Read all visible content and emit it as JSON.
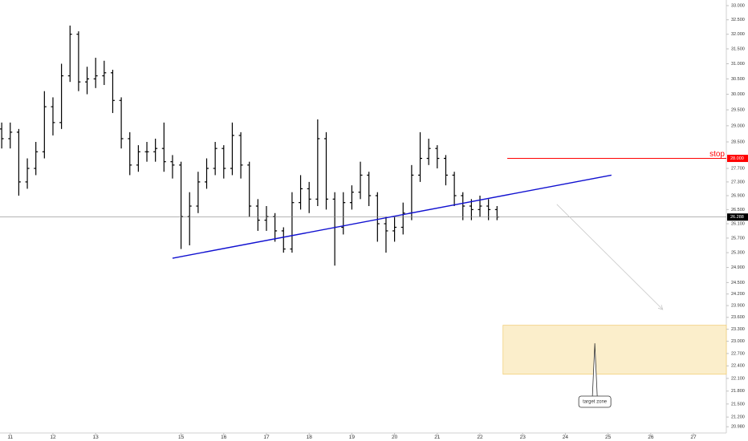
{
  "chart_data": {
    "type": "ohlc",
    "log_scale": true,
    "color": "#000000",
    "xlim": [
      10.76,
      27.77
    ],
    "ylim": [
      20.84,
      33.2
    ],
    "xticks": [
      11,
      12,
      13,
      15,
      16,
      17,
      18,
      19,
      20,
      21,
      22,
      23,
      24,
      25,
      26,
      27
    ],
    "yticks": [
      {
        "value": 33,
        "label": "33.000"
      },
      {
        "value": 32.5,
        "label": "32.500"
      },
      {
        "value": 32,
        "label": "32.000"
      },
      {
        "value": 31.5,
        "label": "31.500"
      },
      {
        "value": 31,
        "label": "31.000"
      },
      {
        "value": 30.5,
        "label": "30.500"
      },
      {
        "value": 30,
        "label": "30.000"
      },
      {
        "value": 29.5,
        "label": "29.500"
      },
      {
        "value": 29,
        "label": "29.000"
      },
      {
        "value": 28.5,
        "label": "28.500"
      },
      {
        "value": 27.7,
        "label": "27.700"
      },
      {
        "value": 27.3,
        "label": "27.300"
      },
      {
        "value": 26.9,
        "label": "26.900"
      },
      {
        "value": 26.5,
        "label": "26.500"
      },
      {
        "value": 26.1,
        "label": "26.100"
      },
      {
        "value": 25.7,
        "label": "25.700"
      },
      {
        "value": 25.3,
        "label": "25.300"
      },
      {
        "value": 24.9,
        "label": "24.900"
      },
      {
        "value": 24.5,
        "label": "24.500"
      },
      {
        "value": 24.2,
        "label": "24.200"
      },
      {
        "value": 23.9,
        "label": "23.900"
      },
      {
        "value": 23.6,
        "label": "23.600"
      },
      {
        "value": 23.3,
        "label": "23.300"
      },
      {
        "value": 23,
        "label": "23.000"
      },
      {
        "value": 22.7,
        "label": "22.700"
      },
      {
        "value": 22.4,
        "label": "22.400"
      },
      {
        "value": 22.1,
        "label": "22.100"
      },
      {
        "value": 21.8,
        "label": "21.800"
      },
      {
        "value": 21.5,
        "label": "21.500"
      },
      {
        "value": 21.2,
        "label": "21.200"
      },
      {
        "value": 20.98,
        "label": "20.980"
      }
    ],
    "x": [
      10.8,
      11.0,
      11.2,
      11.4,
      11.6,
      11.8,
      12.0,
      12.2,
      12.4,
      12.6,
      12.8,
      13.0,
      13.2,
      13.4,
      13.6,
      13.8,
      14.0,
      14.2,
      14.4,
      14.6,
      14.8,
      15.0,
      15.2,
      15.4,
      15.6,
      15.8,
      16.0,
      16.2,
      16.4,
      16.6,
      16.8,
      17.0,
      17.2,
      17.4,
      17.6,
      17.8,
      18.0,
      18.2,
      18.4,
      18.6,
      18.8,
      19.0,
      19.2,
      19.4,
      19.6,
      19.8,
      20.0,
      20.2,
      20.4,
      20.6,
      20.8,
      21.0,
      21.2,
      21.4,
      21.6,
      21.8,
      22.0,
      22.2,
      22.4
    ],
    "open": [
      28.9,
      28.6,
      28.8,
      27.3,
      27.7,
      28.2,
      29.6,
      29.1,
      30.6,
      32.0,
      30.4,
      30.5,
      30.6,
      30.7,
      29.8,
      28.6,
      27.8,
      28.2,
      28.2,
      28.3,
      27.9,
      27.8,
      26.3,
      26.6,
      27.3,
      27.7,
      28.3,
      27.7,
      28.7,
      27.8,
      26.6,
      26.2,
      26.3,
      25.9,
      25.4,
      26.7,
      27.1,
      26.8,
      28.6,
      26.8,
      26.0,
      26.7,
      27.0,
      27.5,
      26.9,
      26.1,
      25.9,
      26.0,
      26.4,
      27.5,
      28.0,
      28.3,
      28.0,
      27.5,
      26.9,
      26.6,
      26.5,
      26.6,
      26.5
    ],
    "high": [
      29.1,
      29.1,
      28.9,
      28.0,
      28.5,
      30.1,
      29.9,
      31.0,
      32.3,
      32.1,
      30.9,
      31.2,
      31.1,
      30.8,
      29.9,
      28.8,
      28.4,
      28.5,
      28.6,
      29.1,
      28.1,
      27.9,
      27.0,
      27.6,
      28.0,
      28.5,
      28.4,
      29.1,
      28.8,
      27.9,
      26.8,
      26.6,
      26.4,
      26.0,
      27.0,
      27.5,
      27.3,
      29.2,
      28.8,
      27.0,
      27.0,
      27.2,
      27.9,
      27.6,
      27.0,
      26.3,
      26.3,
      26.7,
      27.8,
      28.8,
      28.6,
      28.4,
      28.1,
      27.6,
      27.0,
      26.8,
      26.9,
      26.8,
      26.6
    ],
    "low": [
      28.3,
      28.3,
      26.9,
      27.1,
      27.5,
      28.0,
      28.7,
      28.9,
      30.4,
      30.1,
      30.0,
      30.2,
      30.3,
      29.4,
      28.3,
      27.5,
      27.6,
      27.9,
      27.9,
      27.6,
      27.4,
      25.4,
      25.5,
      26.4,
      27.1,
      27.5,
      27.4,
      27.5,
      27.4,
      26.3,
      25.9,
      25.9,
      25.6,
      25.3,
      25.3,
      26.5,
      26.4,
      26.6,
      26.5,
      24.95,
      25.8,
      26.5,
      26.8,
      26.6,
      25.6,
      25.3,
      25.6,
      25.8,
      26.2,
      27.3,
      27.8,
      27.7,
      27.2,
      26.6,
      26.2,
      26.2,
      26.3,
      26.2,
      26.2
    ],
    "close": [
      28.6,
      28.8,
      27.3,
      27.7,
      28.2,
      29.6,
      29.1,
      30.6,
      32.0,
      30.4,
      30.5,
      30.6,
      30.7,
      29.8,
      28.6,
      27.8,
      28.2,
      28.2,
      28.3,
      27.9,
      27.8,
      26.3,
      26.6,
      27.3,
      27.7,
      28.3,
      27.7,
      28.7,
      27.8,
      26.6,
      26.2,
      26.3,
      25.9,
      25.4,
      26.7,
      27.1,
      26.8,
      28.6,
      26.8,
      26.0,
      26.7,
      27.0,
      27.5,
      26.9,
      26.1,
      25.9,
      26.0,
      26.4,
      27.5,
      28.0,
      28.3,
      28.0,
      27.5,
      26.9,
      26.6,
      26.5,
      26.6,
      26.5,
      26.29
    ],
    "price_line": {
      "value": 26.288,
      "label": "26.288",
      "color": "#000000"
    },
    "stop": {
      "text": "stop",
      "value": 28,
      "label": "28.000",
      "x_start": 22.64,
      "color": "#ff0000"
    },
    "trendline": {
      "x": [
        14.8,
        25.08
      ],
      "y": [
        25.15,
        27.5
      ],
      "color": "#1010d0"
    },
    "arrow": {
      "x": [
        23.8,
        26.28
      ],
      "y": [
        26.65,
        23.8
      ],
      "color": "#c8c8c8"
    },
    "target_zone": {
      "text": "target zone",
      "x_start": 22.54,
      "y": [
        23.4,
        22.2
      ],
      "pointer_x": 24.69,
      "pointer_y": 22.95,
      "color": "#fbeecb"
    }
  }
}
